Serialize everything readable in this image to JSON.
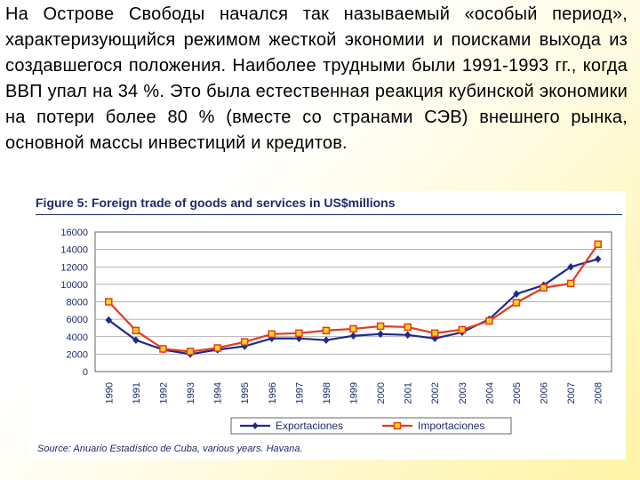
{
  "paragraph": "На Острове Свободы начался так называемый «особый период», характеризующийся режимом жесткой экономии и поисками выхода из создавшегося положения. Наиболее трудными были 1991-1993 гг., когда ВВП упал на 34 %. Это была естественная реакция кубинской экономики на потери более 80 % (вместе со странами СЭВ) внешнего рынка, основной массы инвестиций и кредитов.",
  "figure": {
    "title": "Figure 5: Foreign trade of goods and services in US$millions",
    "source": "Source: Anuario Estadístico de Cuba, various years. Havana."
  },
  "chart_data": {
    "type": "line",
    "title": "Figure 5: Foreign trade of goods and services in US$millions",
    "xlabel": "",
    "ylabel": "",
    "ylim": [
      0,
      16000
    ],
    "yticks": [
      0,
      2000,
      4000,
      6000,
      8000,
      10000,
      12000,
      14000,
      16000
    ],
    "categories": [
      "1990",
      "1991",
      "1992",
      "1993",
      "1994",
      "1995",
      "1996",
      "1997",
      "1998",
      "1999",
      "2000",
      "2001",
      "2002",
      "2003",
      "2004",
      "2005",
      "2006",
      "2007",
      "2008"
    ],
    "grid": "horizontal",
    "legend_position": "bottom",
    "series": [
      {
        "name": "Exportaciones",
        "color": "#1f2a8a",
        "marker": "diamond",
        "values": [
          5900,
          3600,
          2500,
          2000,
          2500,
          2900,
          3800,
          3800,
          3600,
          4100,
          4300,
          4200,
          3800,
          4500,
          6000,
          8900,
          9900,
          12000,
          12900
        ]
      },
      {
        "name": "Importaciones",
        "color": "#e53a1f",
        "marker": "square",
        "values": [
          8000,
          4700,
          2600,
          2300,
          2700,
          3400,
          4300,
          4400,
          4700,
          4900,
          5200,
          5100,
          4400,
          4800,
          5800,
          7900,
          9600,
          10100,
          14600
        ]
      }
    ]
  }
}
